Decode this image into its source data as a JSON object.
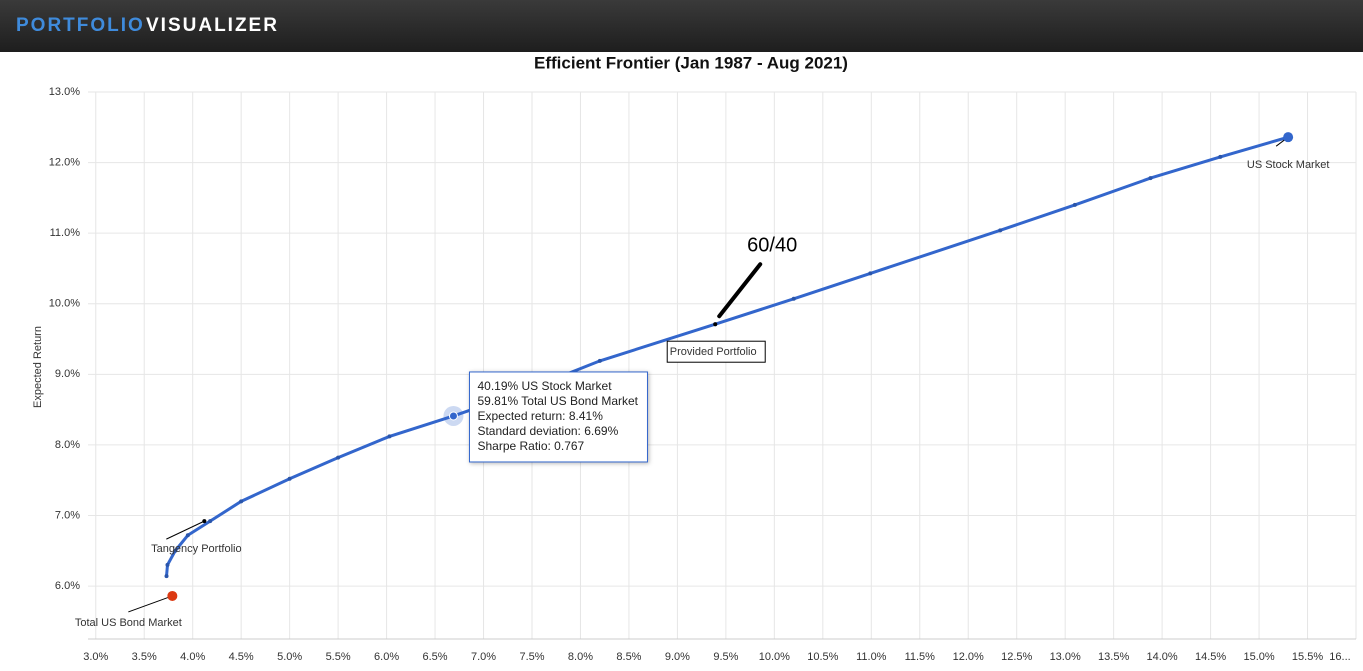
{
  "header": {
    "brand_first": "PORTFOLIO",
    "brand_second": "VISUALIZER"
  },
  "chart_data": {
    "type": "line",
    "title": "Efficient Frontier (Jan 1987 - Aug 2021)",
    "y_label": "Expected Return",
    "xlim": [
      2.92,
      16.0
    ],
    "ylim": [
      5.25,
      13.0
    ],
    "grid": true,
    "xticks": [
      {
        "value": 3.0,
        "label": "3.0%"
      },
      {
        "value": 3.5,
        "label": "3.5%"
      },
      {
        "value": 4.0,
        "label": "4.0%"
      },
      {
        "value": 4.5,
        "label": "4.5%"
      },
      {
        "value": 5.0,
        "label": "5.0%"
      },
      {
        "value": 5.5,
        "label": "5.5%"
      },
      {
        "value": 6.0,
        "label": "6.0%"
      },
      {
        "value": 6.5,
        "label": "6.5%"
      },
      {
        "value": 7.0,
        "label": "7.0%"
      },
      {
        "value": 7.5,
        "label": "7.5%"
      },
      {
        "value": 8.0,
        "label": "8.0%"
      },
      {
        "value": 8.5,
        "label": "8.5%"
      },
      {
        "value": 9.0,
        "label": "9.0%"
      },
      {
        "value": 9.5,
        "label": "9.5%"
      },
      {
        "value": 10.0,
        "label": "10.0%"
      },
      {
        "value": 10.5,
        "label": "10.5%"
      },
      {
        "value": 11.0,
        "label": "11.0%"
      },
      {
        "value": 11.5,
        "label": "11.5%"
      },
      {
        "value": 12.0,
        "label": "12.0%"
      },
      {
        "value": 12.5,
        "label": "12.5%"
      },
      {
        "value": 13.0,
        "label": "13.0%"
      },
      {
        "value": 13.5,
        "label": "13.5%"
      },
      {
        "value": 14.0,
        "label": "14.0%"
      },
      {
        "value": 14.5,
        "label": "14.5%"
      },
      {
        "value": 15.0,
        "label": "15.0%"
      },
      {
        "value": 15.5,
        "label": "15.5%"
      },
      {
        "value": 16.0,
        "label": "16..."
      }
    ],
    "yticks": [
      {
        "value": 6.0,
        "label": "6.0%"
      },
      {
        "value": 7.0,
        "label": "7.0%"
      },
      {
        "value": 8.0,
        "label": "8.0%"
      },
      {
        "value": 9.0,
        "label": "9.0%"
      },
      {
        "value": 10.0,
        "label": "10.0%"
      },
      {
        "value": 11.0,
        "label": "11.0%"
      },
      {
        "value": 12.0,
        "label": "12.0%"
      },
      {
        "value": 13.0,
        "label": "13.0%"
      }
    ],
    "series": [
      {
        "color": "#3366cc",
        "x": [
          3.73,
          3.74,
          3.82,
          3.95,
          4.18,
          4.5,
          5.0,
          5.5,
          6.03,
          6.69,
          7.3,
          8.2,
          9.39,
          10.2,
          10.99,
          12.33,
          13.1,
          13.88,
          14.6,
          15.3
        ],
        "values": [
          6.14,
          6.3,
          6.5,
          6.72,
          6.92,
          7.2,
          7.52,
          7.82,
          8.12,
          8.41,
          8.7,
          9.19,
          9.71,
          10.07,
          10.43,
          11.04,
          11.4,
          11.78,
          12.08,
          12.36
        ]
      }
    ],
    "points": [
      {
        "label": "US Stock Market",
        "x": 15.3,
        "y": 12.36,
        "color": "#3366cc"
      },
      {
        "label": "Total US Bond Market",
        "x": 3.79,
        "y": 5.86,
        "color": "#dc3912"
      },
      {
        "label": "Provided Portfolio",
        "x": 9.39,
        "y": 9.71,
        "color": "#000000"
      },
      {
        "label": "Tangency Portfolio",
        "x": 4.12,
        "y": 6.92,
        "color": "#000000"
      }
    ],
    "annotation": "60/40",
    "tooltip": {
      "x": 6.69,
      "y": 8.41,
      "lines": [
        "40.19% US Stock Market",
        "59.81% Total US Bond Market",
        "Expected return: 8.41%",
        "Standard deviation: 6.69%",
        "Sharpe Ratio: 0.767"
      ]
    }
  }
}
